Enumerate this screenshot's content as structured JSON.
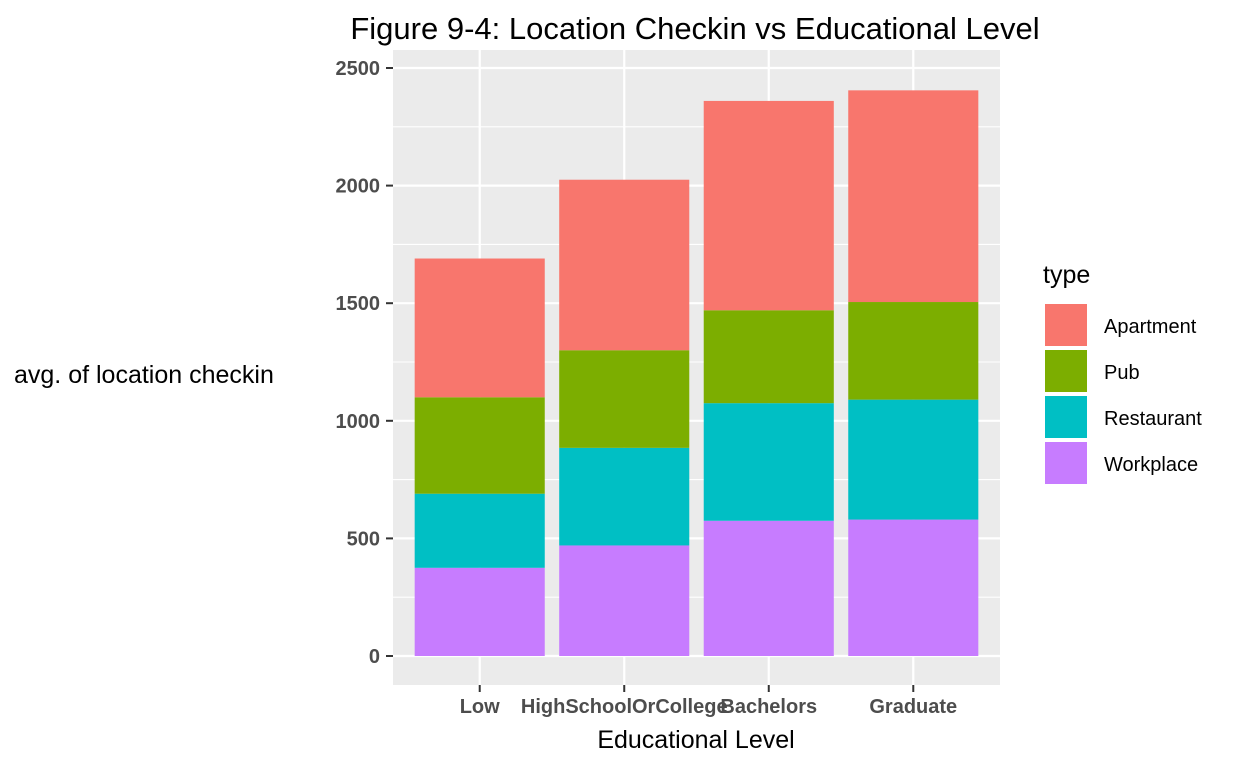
{
  "chart_data": {
    "type": "bar",
    "stacked": true,
    "title": "Figure 9-4: Location Checkin vs Educational Level",
    "xlabel": "Educational Level",
    "ylabel": "avg. of location checkin",
    "categories": [
      "Low",
      "HighSchoolOrCollege",
      "Bachelors",
      "Graduate"
    ],
    "ylim": [
      0,
      2500
    ],
    "yticks": [
      0,
      500,
      1000,
      1500,
      2000,
      2500
    ],
    "grid": true,
    "legend": {
      "title": "type",
      "position": "right"
    },
    "series": [
      {
        "name": "Workplace",
        "color": "#C77CFF",
        "values": [
          375,
          470,
          575,
          580
        ]
      },
      {
        "name": "Restaurant",
        "color": "#00BFC4",
        "values": [
          315,
          415,
          500,
          510
        ]
      },
      {
        "name": "Pub",
        "color": "#7CAE00",
        "values": [
          410,
          415,
          395,
          415
        ]
      },
      {
        "name": "Apartment",
        "color": "#F8766D",
        "values": [
          590,
          725,
          890,
          900
        ]
      }
    ],
    "legend_order": [
      "Apartment",
      "Pub",
      "Restaurant",
      "Workplace"
    ],
    "panel_background": "#EBEBEB",
    "grid_color": "#FFFFFF"
  }
}
